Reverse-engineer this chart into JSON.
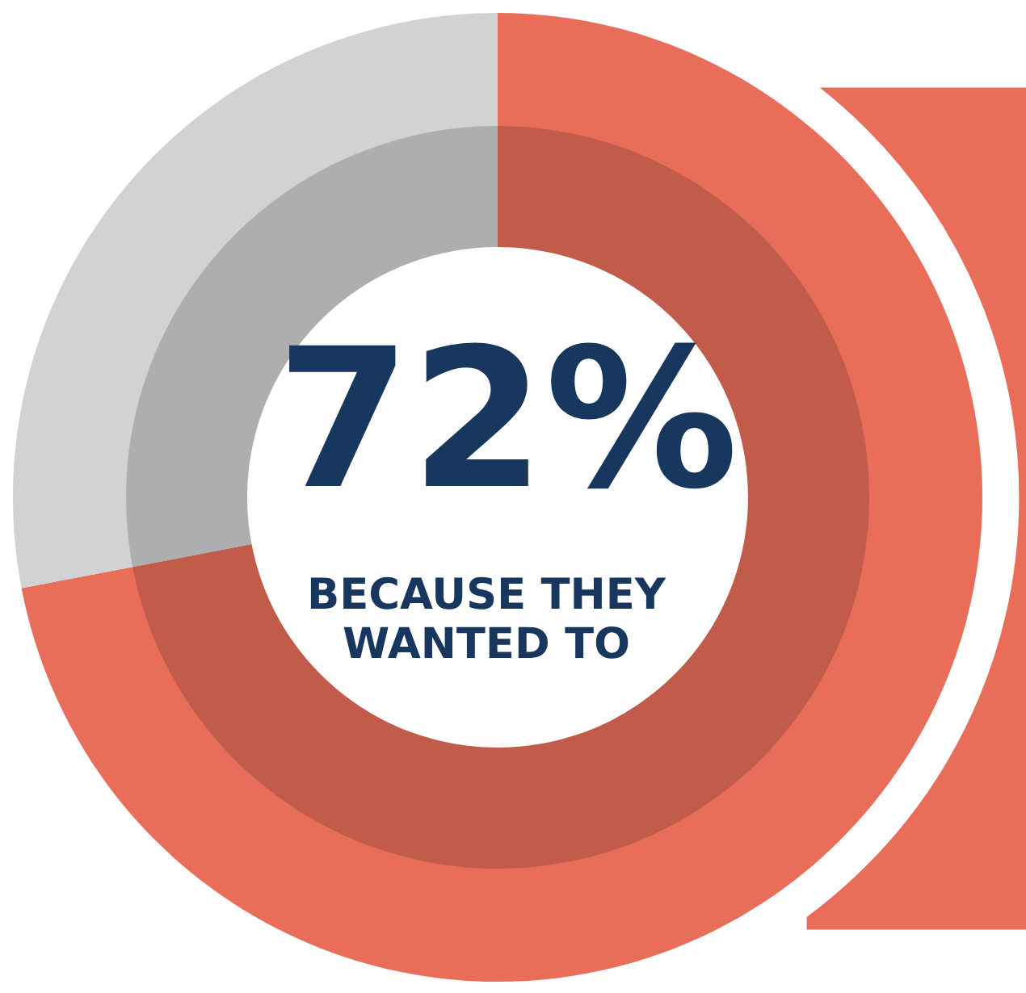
{
  "chart_data": {
    "type": "donut",
    "categories": [
      null,
      null
    ],
    "values": [
      72,
      28
    ],
    "colors": [
      "#e96e5a",
      "#d1d2d4"
    ],
    "value_labels": [
      "72%",
      null
    ],
    "annotations": [
      "BECAUSE THEY\nWANTED TO"
    ]
  }
}
